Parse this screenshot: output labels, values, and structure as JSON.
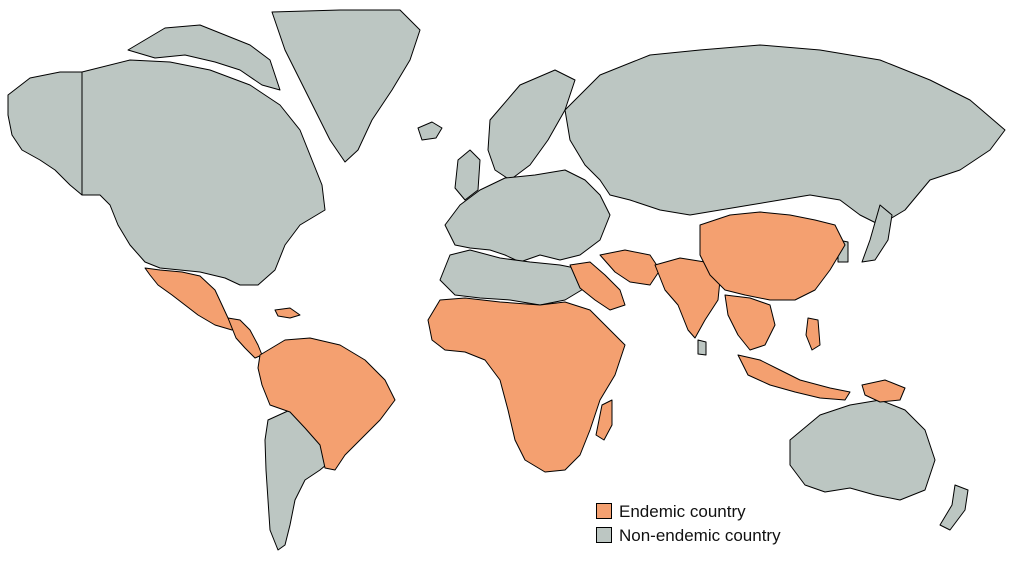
{
  "colors": {
    "endemic": "#f4a070",
    "non_endemic": "#bcc6c2",
    "border": "#000000",
    "background": "#ffffff"
  },
  "legend": {
    "endemic_label": "Endemic country",
    "non_endemic_label": "Non-endemic country"
  },
  "regions": {
    "endemic": [
      "mexico",
      "central-america",
      "caribbean-island",
      "south-america-tropical",
      "africa-sub-saharan",
      "madagascar",
      "arabia-south",
      "middle-east-south",
      "india",
      "southeast-asia",
      "china",
      "indonesia",
      "philippines",
      "papua-new-guinea"
    ],
    "non_endemic": [
      "north-america",
      "alaska",
      "greenland",
      "canadian-arctic-islands",
      "iceland",
      "europe",
      "russia",
      "north-africa",
      "argentina-chile",
      "australia",
      "new-zealand",
      "japan",
      "korea",
      "sri-lanka",
      "uk-ireland",
      "scandinavia"
    ]
  }
}
